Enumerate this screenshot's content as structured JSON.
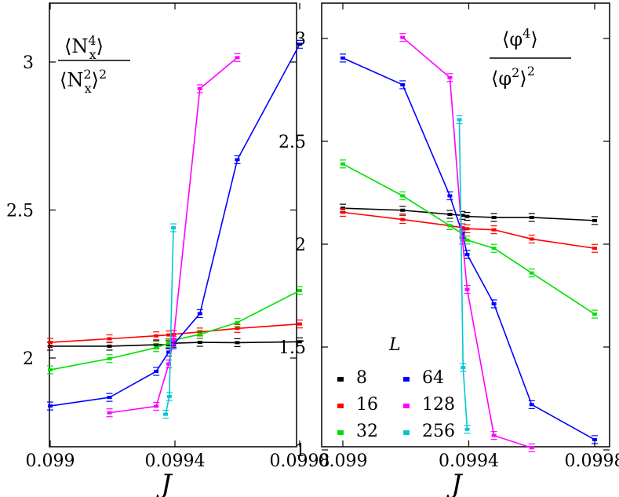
{
  "chart_data": [
    {
      "type": "line",
      "ylabel_formula": "⟨N_x^4⟩ / ⟨N_x^2⟩^2",
      "xlabel": "J",
      "xlim": [
        0.099,
        0.0998
      ],
      "ylim": [
        1.72,
        3.2
      ],
      "xticks": [
        0.099,
        0.0994,
        0.0998
      ],
      "xtick_labels": [
        "0.099",
        "0.0994",
        "0.0998"
      ],
      "yticks": [
        2,
        2.5,
        3
      ],
      "ytick_labels": [
        "2",
        "2.5",
        "3"
      ],
      "series": [
        {
          "name": "8",
          "color": "#000000",
          "x": [
            0.099,
            0.09919,
            0.09934,
            0.09938,
            0.099395,
            0.09948,
            0.0996,
            0.0998
          ],
          "y": [
            2.04,
            2.04,
            2.045,
            2.045,
            2.05,
            2.053,
            2.052,
            2.055
          ]
        },
        {
          "name": "16",
          "color": "#ff0000",
          "x": [
            0.099,
            0.09919,
            0.09934,
            0.09938,
            0.099395,
            0.09948,
            0.0996,
            0.0998
          ],
          "y": [
            2.053,
            2.065,
            2.075,
            2.078,
            2.08,
            2.088,
            2.1,
            2.115
          ]
        },
        {
          "name": "32",
          "color": "#00e000",
          "x": [
            0.099,
            0.09919,
            0.09934,
            0.09938,
            0.099395,
            0.09948,
            0.0996,
            0.0998
          ],
          "y": [
            1.96,
            1.998,
            2.035,
            2.05,
            2.06,
            2.08,
            2.12,
            2.228
          ]
        },
        {
          "name": "64",
          "color": "#0000ff",
          "x": [
            0.099,
            0.09919,
            0.09934,
            0.09938,
            0.099395,
            0.09948,
            0.0996,
            0.0998
          ],
          "y": [
            1.838,
            1.867,
            1.955,
            2.02,
            2.045,
            2.15,
            2.67,
            3.06
          ]
        },
        {
          "name": "128",
          "color": "#ff00ff",
          "x": [
            0.09919,
            0.09934,
            0.09938,
            0.099395,
            0.09948,
            0.0996
          ],
          "y": [
            1.815,
            1.837,
            1.98,
            2.06,
            2.91,
            3.015
          ]
        },
        {
          "name": "256",
          "color": "#00c8d2",
          "x": [
            0.09937,
            0.099382,
            0.099395
          ],
          "y": [
            1.81,
            1.87,
            2.44
          ]
        }
      ]
    },
    {
      "type": "line",
      "ylabel_formula": "⟨φ^4⟩ / ⟨φ^2⟩^2",
      "xlabel": "J",
      "xlim": [
        0.099,
        0.0998
      ],
      "ylim": [
        1.0,
        3.2
      ],
      "xticks": [
        0.099,
        0.0994,
        0.0998
      ],
      "xtick_labels": [
        "0.099",
        "0.0994",
        "0.0998"
      ],
      "yticks": [
        1,
        1.5,
        2,
        2.5,
        3
      ],
      "ytick_labels": [
        "1",
        "1.5",
        "2",
        "2.5",
        "3"
      ],
      "series": [
        {
          "name": "8",
          "color": "#000000",
          "x": [
            0.099,
            0.09919,
            0.09934,
            0.09938,
            0.099395,
            0.09948,
            0.0996,
            0.0998
          ],
          "y": [
            2.175,
            2.165,
            2.145,
            2.14,
            2.135,
            2.13,
            2.13,
            2.115
          ]
        },
        {
          "name": "16",
          "color": "#ff0000",
          "x": [
            0.099,
            0.09919,
            0.09934,
            0.09938,
            0.099395,
            0.09948,
            0.0996,
            0.0998
          ],
          "y": [
            2.155,
            2.12,
            2.09,
            2.08,
            2.075,
            2.07,
            2.025,
            1.98
          ]
        },
        {
          "name": "32",
          "color": "#00e000",
          "x": [
            0.099,
            0.09919,
            0.09934,
            0.09938,
            0.099395,
            0.09948,
            0.0996,
            0.0998
          ],
          "y": [
            2.39,
            2.235,
            2.09,
            2.05,
            2.02,
            1.98,
            1.86,
            1.66
          ]
        },
        {
          "name": "64",
          "color": "#0000ff",
          "x": [
            0.099,
            0.09919,
            0.09934,
            0.09938,
            0.099395,
            0.09948,
            0.0996,
            0.0998
          ],
          "y": [
            2.905,
            2.775,
            2.235,
            2.05,
            1.95,
            1.71,
            1.22,
            1.05
          ]
        },
        {
          "name": "128",
          "color": "#ff00ff",
          "x": [
            0.09919,
            0.09934,
            0.09938,
            0.099395,
            0.09948,
            0.0996
          ],
          "y": [
            3.005,
            2.81,
            2.02,
            1.78,
            1.07,
            1.01
          ]
        },
        {
          "name": "256",
          "color": "#00c8d2",
          "x": [
            0.09937,
            0.099382,
            0.099395
          ],
          "y": [
            2.605,
            1.4,
            1.1
          ]
        }
      ]
    }
  ],
  "legend": {
    "title": "L",
    "items": [
      {
        "label": "8",
        "color": "#000000"
      },
      {
        "label": "64",
        "color": "#0000ff"
      },
      {
        "label": "16",
        "color": "#ff0000"
      },
      {
        "label": "128",
        "color": "#ff00ff"
      },
      {
        "label": "32",
        "color": "#00e000"
      },
      {
        "label": "256",
        "color": "#00c8d2"
      }
    ]
  },
  "formulas": {
    "left_num": "⟨N",
    "left_num_sub": "x",
    "left_num_sup": "4",
    "left_num_close": "⟩",
    "left_den": "⟨N",
    "left_den_sub": "x",
    "left_den_sup": "2",
    "left_den_close": "⟩",
    "left_den_pow": "2",
    "right_num": "⟨φ",
    "right_num_sup": "4",
    "right_num_close": "⟩",
    "right_den": "⟨φ",
    "right_den_sup": "2",
    "right_den_close": "⟩",
    "right_den_pow": "2"
  }
}
